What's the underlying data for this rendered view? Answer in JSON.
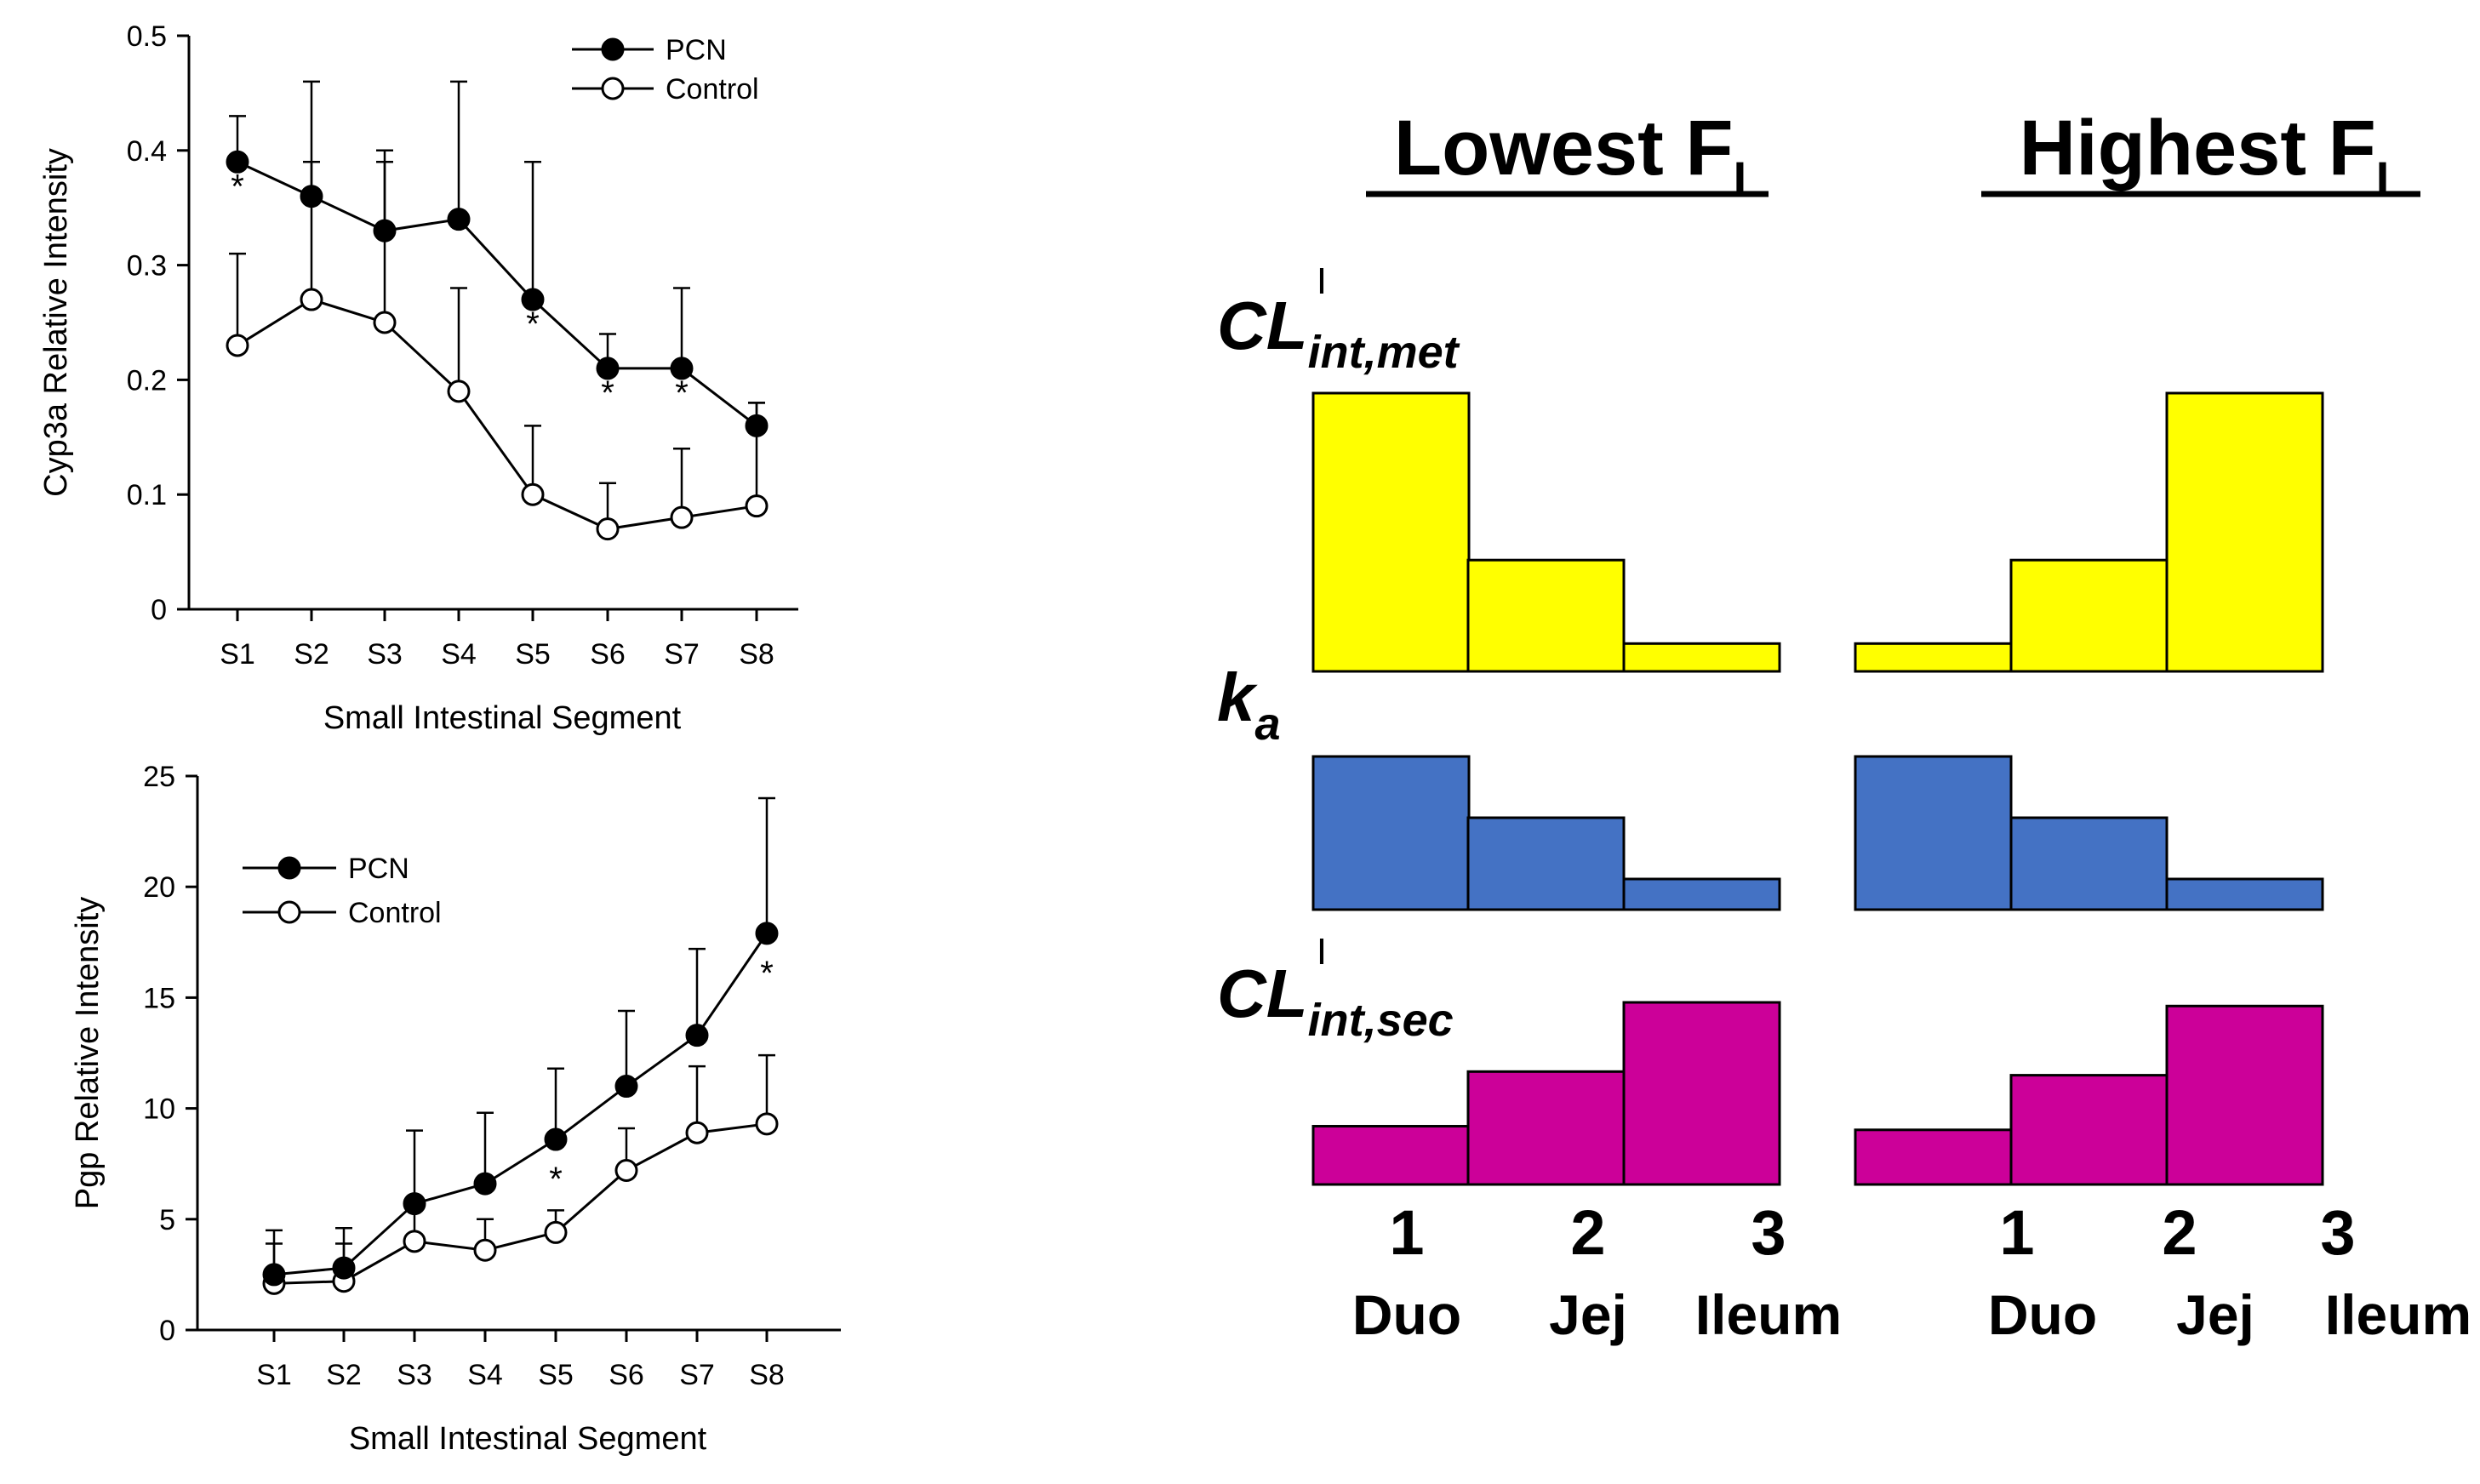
{
  "chart_data": [
    {
      "type": "line",
      "title": "",
      "xlabel": "Small Intestinal Segment",
      "ylabel": "Cyp3a Relative Intensity",
      "ylim": [
        0,
        0.5
      ],
      "yticks": [
        "0",
        "0.1",
        "0.2",
        "0.3",
        "0.4",
        "0.5"
      ],
      "categories": [
        "S1",
        "S2",
        "S3",
        "S4",
        "S5",
        "S6",
        "S7",
        "S8"
      ],
      "series": [
        {
          "name": "PCN",
          "marker": "filled",
          "values": [
            0.39,
            0.36,
            0.33,
            0.34,
            0.27,
            0.21,
            0.21,
            0.16
          ],
          "error": [
            0.04,
            0.1,
            0.07,
            0.12,
            0.12,
            0.03,
            0.07,
            0.02
          ]
        },
        {
          "name": "Control",
          "marker": "open",
          "values": [
            0.23,
            0.27,
            0.25,
            0.19,
            0.1,
            0.07,
            0.08,
            0.09
          ],
          "error": [
            0.08,
            0.12,
            0.14,
            0.09,
            0.06,
            0.04,
            0.06,
            0.09
          ]
        }
      ],
      "significance": {
        "symbol": "*",
        "categories": [
          "S1",
          "S5",
          "S6",
          "S7"
        ]
      },
      "legend": "top-right"
    },
    {
      "type": "line",
      "title": "",
      "xlabel": "Small Intestinal Segment",
      "ylabel": "Pgp Relative Intensity",
      "ylim": [
        0,
        25
      ],
      "yticks": [
        "0",
        "5",
        "10",
        "15",
        "20",
        "25"
      ],
      "categories": [
        "S1",
        "S2",
        "S3",
        "S4",
        "S5",
        "S6",
        "S7",
        "S8"
      ],
      "series": [
        {
          "name": "PCN",
          "marker": "filled",
          "values": [
            2.5,
            2.8,
            5.7,
            6.6,
            8.6,
            11.0,
            13.3,
            17.9
          ],
          "error": [
            2.0,
            1.8,
            3.3,
            3.2,
            3.2,
            3.4,
            3.9,
            6.1
          ]
        },
        {
          "name": "Control",
          "marker": "open",
          "values": [
            2.1,
            2.2,
            4.0,
            3.6,
            4.4,
            7.2,
            8.9,
            9.3
          ],
          "error": [
            1.8,
            1.7,
            2.0,
            1.4,
            1.0,
            1.9,
            3.0,
            3.1
          ]
        }
      ],
      "significance": {
        "symbol": "*",
        "categories": [
          "S5",
          "S8"
        ]
      },
      "legend": "top-left"
    },
    {
      "type": "bar",
      "title": "Lowest F",
      "title_subscript": "I",
      "categories": [
        "1",
        "2",
        "3"
      ],
      "category_names": [
        "Duo",
        "Jej",
        "Ileum"
      ],
      "series": [
        {
          "name": "CL",
          "superscript": "I",
          "subscript": "int,met",
          "color": "#ffff00",
          "values": [
            1.0,
            0.4,
            0.1
          ]
        },
        {
          "name": "k",
          "subscript": "a",
          "color": "#4472c4",
          "values": [
            1.0,
            0.6,
            0.2
          ]
        },
        {
          "name": "CL",
          "superscript": "I",
          "subscript": "int,sec",
          "color": "#cc0099",
          "values": [
            0.32,
            0.62,
            1.0
          ]
        }
      ]
    },
    {
      "type": "bar",
      "title": "Highest F",
      "title_subscript": "I",
      "categories": [
        "1",
        "2",
        "3"
      ],
      "category_names": [
        "Duo",
        "Jej",
        "Ileum"
      ],
      "series": [
        {
          "name": "CL",
          "superscript": "I",
          "subscript": "int,met",
          "color": "#ffff00",
          "values": [
            0.1,
            0.4,
            1.0
          ]
        },
        {
          "name": "k",
          "subscript": "a",
          "color": "#4472c4",
          "values": [
            1.0,
            0.6,
            0.2
          ]
        },
        {
          "name": "CL",
          "superscript": "I",
          "subscript": "int,sec",
          "color": "#cc0099",
          "values": [
            0.3,
            0.6,
            0.98
          ]
        }
      ]
    }
  ]
}
